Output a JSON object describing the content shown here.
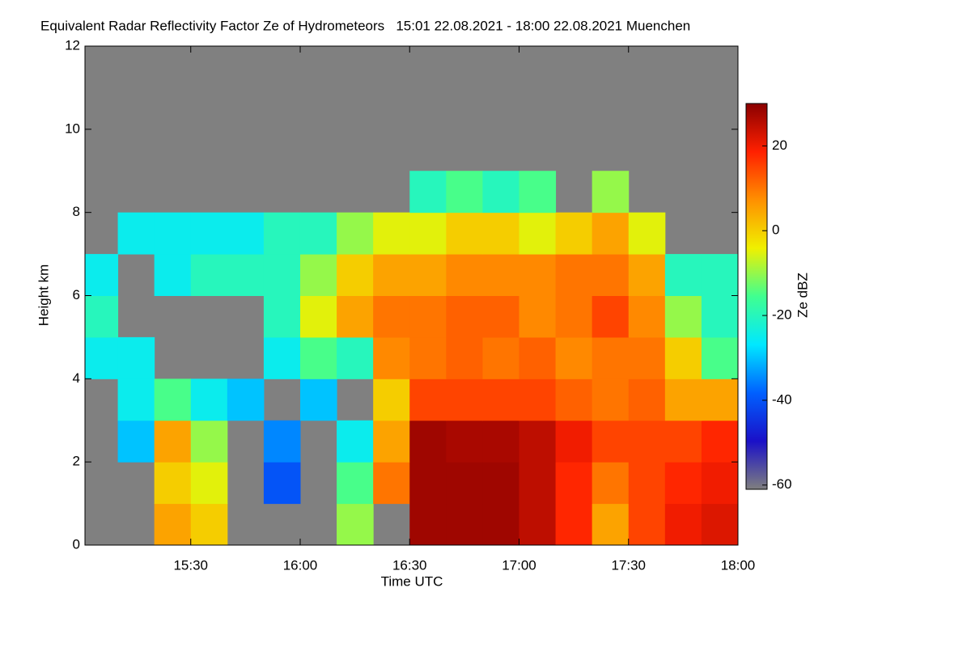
{
  "chart_data": {
    "type": "heatmap",
    "title": "Equivalent Radar Reflectivity Factor Ze of Hydrometeors   15:01 22.08.2021 - 18:00 22.08.2021 Muenchen",
    "x_label": "Time UTC",
    "y_label": "Height km",
    "colorbar_label": "Ze dBZ",
    "xlim": [
      "2021-08-22T15:01",
      "2021-08-22T18:00"
    ],
    "xticks": [
      {
        "value": "2021-08-22T15:30",
        "label": "15:30"
      },
      {
        "value": "2021-08-22T16:00",
        "label": "16:00"
      },
      {
        "value": "2021-08-22T16:30",
        "label": "16:30"
      },
      {
        "value": "2021-08-22T17:00",
        "label": "17:00"
      },
      {
        "value": "2021-08-22T17:30",
        "label": "17:30"
      },
      {
        "value": "2021-08-22T18:00",
        "label": "18:00"
      }
    ],
    "ylim": [
      0,
      12
    ],
    "yticks": [
      0,
      2,
      4,
      6,
      8,
      10,
      12
    ],
    "clim": [
      -61,
      30
    ],
    "cticks": [
      -60,
      -40,
      -20,
      0,
      20
    ],
    "colorscale": [
      "#7f7f7f",
      "#1a10c8",
      "#0060ff",
      "#00e8ff",
      "#40ff90",
      "#f0f000",
      "#ff9000",
      "#ff2000",
      "#8a0000"
    ],
    "missing_color": "#808080",
    "x": [
      "2021-08-22T15:05",
      "2021-08-22T15:15",
      "2021-08-22T15:25",
      "2021-08-22T15:35",
      "2021-08-22T15:45",
      "2021-08-22T15:55",
      "2021-08-22T16:05",
      "2021-08-22T16:15",
      "2021-08-22T16:25",
      "2021-08-22T16:35",
      "2021-08-22T16:45",
      "2021-08-22T16:55",
      "2021-08-22T17:05",
      "2021-08-22T17:15",
      "2021-08-22T17:25",
      "2021-08-22T17:35",
      "2021-08-22T17:45",
      "2021-08-22T17:55"
    ],
    "y": [
      0.5,
      1.5,
      2.5,
      3.5,
      4.5,
      5.5,
      6.5,
      7.5,
      8.5,
      9.5,
      10.5,
      11.5
    ],
    "z": [
      [
        null,
        null,
        5,
        0,
        null,
        null,
        null,
        -10,
        null,
        28,
        28,
        28,
        25,
        18,
        5,
        15,
        20,
        22
      ],
      [
        null,
        null,
        0,
        -5,
        null,
        -40,
        null,
        -15,
        10,
        28,
        28,
        28,
        25,
        18,
        10,
        15,
        18,
        20
      ],
      [
        null,
        -30,
        5,
        -10,
        null,
        -35,
        null,
        -25,
        5,
        28,
        27,
        27,
        25,
        20,
        15,
        15,
        15,
        18
      ],
      [
        null,
        -25,
        -15,
        -25,
        -30,
        null,
        -30,
        null,
        0,
        15,
        15,
        15,
        15,
        12,
        10,
        12,
        5,
        5
      ],
      [
        -25,
        -25,
        null,
        null,
        null,
        -25,
        -15,
        -20,
        8,
        10,
        12,
        10,
        12,
        8,
        10,
        10,
        0,
        -15
      ],
      [
        -20,
        null,
        null,
        null,
        null,
        -20,
        -5,
        5,
        10,
        10,
        12,
        12,
        8,
        10,
        15,
        8,
        -10,
        -20
      ],
      [
        -25,
        null,
        -25,
        -20,
        -20,
        -20,
        -10,
        0,
        5,
        5,
        8,
        8,
        8,
        10,
        10,
        5,
        -20,
        -20
      ],
      [
        null,
        -25,
        -25,
        -25,
        -25,
        -20,
        -20,
        -10,
        -5,
        -5,
        0,
        0,
        -5,
        0,
        5,
        -5,
        null,
        null
      ],
      [
        null,
        null,
        null,
        null,
        null,
        null,
        null,
        null,
        null,
        -20,
        -15,
        -20,
        -15,
        null,
        -10,
        null,
        null,
        null
      ],
      [
        null,
        null,
        null,
        null,
        null,
        null,
        null,
        null,
        null,
        null,
        null,
        null,
        null,
        null,
        null,
        null,
        null,
        null
      ],
      [
        null,
        null,
        null,
        null,
        null,
        null,
        null,
        null,
        null,
        null,
        null,
        null,
        null,
        null,
        null,
        null,
        null,
        null
      ],
      [
        null,
        null,
        null,
        null,
        null,
        null,
        null,
        null,
        null,
        null,
        null,
        null,
        null,
        null,
        null,
        null,
        null,
        null
      ]
    ]
  }
}
